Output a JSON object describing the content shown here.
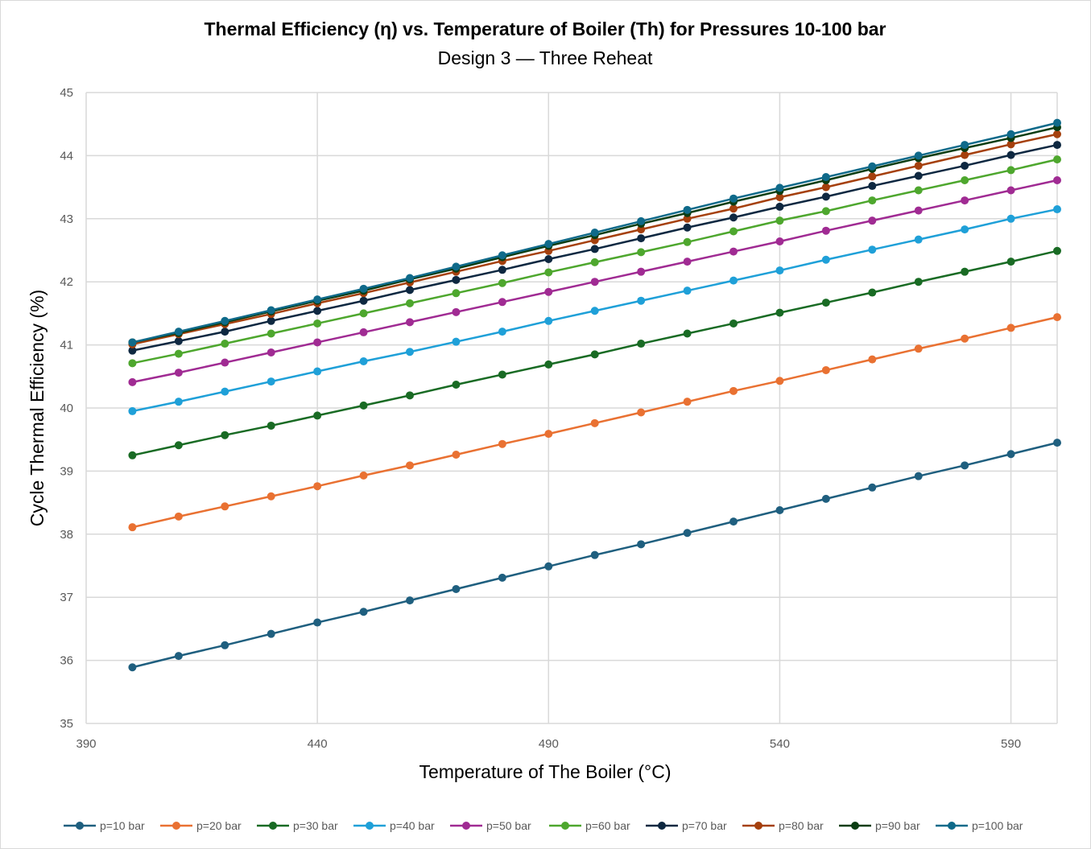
{
  "chart_data": {
    "type": "line",
    "title": "Thermal Efficiency (η) vs. Temperature of Boiler (Th) for Pressures 10-100 bar",
    "subtitle": "Design 3 — Three Reheat",
    "xlabel": "Temperature of The Boiler (°C)",
    "ylabel": "Cycle Thermal Efficiency (%)",
    "xlim": [
      390,
      600
    ],
    "ylim": [
      35,
      45
    ],
    "xticks": [
      390,
      440,
      490,
      540,
      590
    ],
    "yticks": [
      35,
      36,
      37,
      38,
      39,
      40,
      41,
      42,
      43,
      44,
      45
    ],
    "grid": true,
    "legend_position": "bottom",
    "x": [
      400,
      410,
      420,
      430,
      440,
      450,
      460,
      470,
      480,
      490,
      500,
      510,
      520,
      530,
      540,
      550,
      560,
      570,
      580,
      590,
      600
    ],
    "series": [
      {
        "name": "p=10 bar",
        "color": "#1f5f7f",
        "values": [
          35.89,
          36.07,
          36.24,
          36.42,
          36.6,
          36.77,
          36.95,
          37.13,
          37.31,
          37.49,
          37.67,
          37.84,
          38.02,
          38.2,
          38.38,
          38.56,
          38.74,
          38.92,
          39.09,
          39.27,
          39.45
        ]
      },
      {
        "name": "p=20 bar",
        "color": "#e97132",
        "values": [
          38.11,
          38.28,
          38.44,
          38.6,
          38.76,
          38.93,
          39.09,
          39.26,
          39.43,
          39.59,
          39.76,
          39.93,
          40.1,
          40.27,
          40.43,
          40.6,
          40.77,
          40.94,
          41.1,
          41.27,
          41.44
        ]
      },
      {
        "name": "p=30 bar",
        "color": "#196b24",
        "values": [
          39.25,
          39.41,
          39.57,
          39.72,
          39.88,
          40.04,
          40.2,
          40.37,
          40.53,
          40.69,
          40.85,
          41.02,
          41.18,
          41.34,
          41.51,
          41.67,
          41.83,
          42.0,
          42.16,
          42.32,
          42.49
        ]
      },
      {
        "name": "p=40  bar",
        "color": "#1fa0d8",
        "values": [
          39.95,
          40.1,
          40.26,
          40.42,
          40.58,
          40.74,
          40.89,
          41.05,
          41.21,
          41.38,
          41.54,
          41.7,
          41.86,
          42.02,
          42.18,
          42.35,
          42.51,
          42.67,
          42.83,
          43.0,
          43.15
        ]
      },
      {
        "name": "p=50 bar",
        "color": "#a02b93",
        "values": [
          40.41,
          40.56,
          40.72,
          40.88,
          41.04,
          41.2,
          41.36,
          41.52,
          41.68,
          41.84,
          42.0,
          42.16,
          42.32,
          42.48,
          42.64,
          42.81,
          42.97,
          43.13,
          43.29,
          43.45,
          43.61
        ]
      },
      {
        "name": "p=60 bar",
        "color": "#4ea72e",
        "values": [
          40.71,
          40.86,
          41.02,
          41.18,
          41.34,
          41.5,
          41.66,
          41.82,
          41.98,
          42.15,
          42.31,
          42.47,
          42.63,
          42.8,
          42.97,
          43.12,
          43.29,
          43.45,
          43.61,
          43.77,
          43.94
        ]
      },
      {
        "name": "p=70 bar",
        "color": "#0e2841",
        "values": [
          40.91,
          41.06,
          41.21,
          41.38,
          41.54,
          41.7,
          41.87,
          42.03,
          42.19,
          42.36,
          42.52,
          42.69,
          42.86,
          43.02,
          43.19,
          43.35,
          43.52,
          43.68,
          43.84,
          44.01,
          44.17
        ]
      },
      {
        "name": "p=80 bar",
        "color": "#a5400d",
        "values": [
          41.01,
          41.17,
          41.33,
          41.49,
          41.66,
          41.82,
          41.99,
          42.16,
          42.33,
          42.49,
          42.66,
          42.83,
          43.0,
          43.16,
          43.34,
          43.5,
          43.67,
          43.84,
          44.01,
          44.18,
          44.34
        ]
      },
      {
        "name": "p=90 bar",
        "color": "#0b3d13",
        "values": [
          41.04,
          41.19,
          41.36,
          41.53,
          41.7,
          41.86,
          42.04,
          42.21,
          42.39,
          42.57,
          42.74,
          42.92,
          43.09,
          43.27,
          43.44,
          43.61,
          43.79,
          43.96,
          44.12,
          44.28,
          44.45
        ]
      },
      {
        "name": "p=100 bar",
        "color": "#0f6a8a",
        "values": [
          41.04,
          41.21,
          41.38,
          41.55,
          41.72,
          41.89,
          42.06,
          42.24,
          42.42,
          42.6,
          42.78,
          42.96,
          43.14,
          43.32,
          43.49,
          43.66,
          43.83,
          44.0,
          44.17,
          44.34,
          44.52
        ]
      }
    ]
  }
}
